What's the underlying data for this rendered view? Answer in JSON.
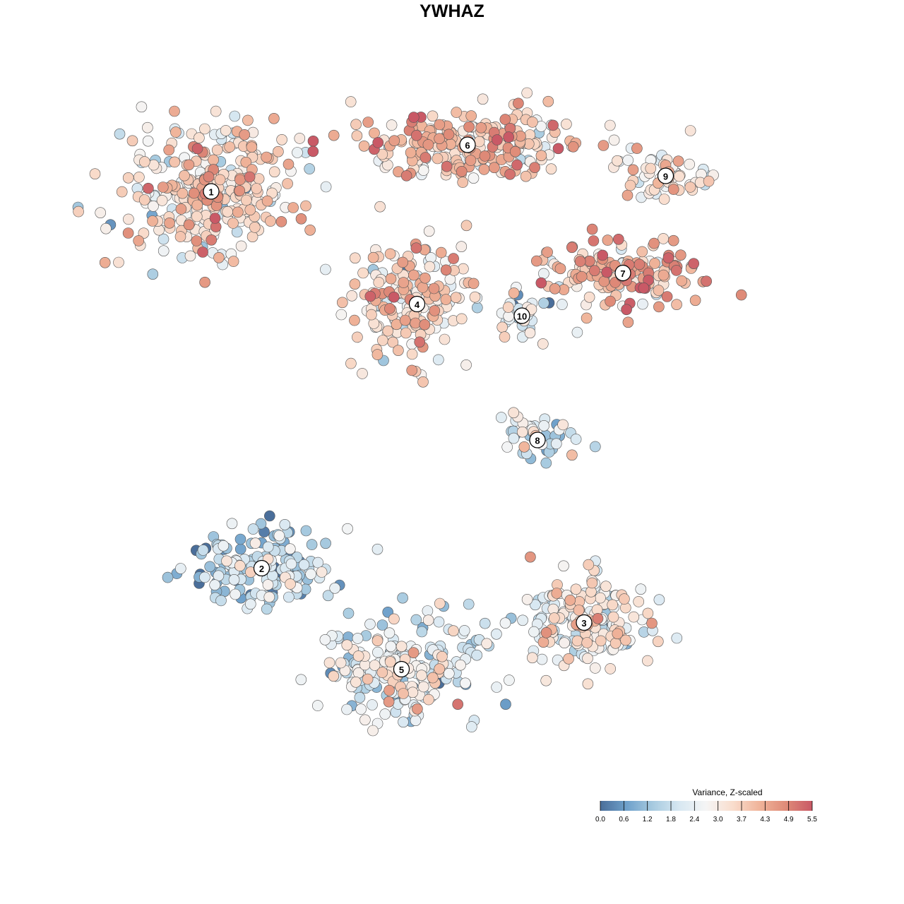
{
  "chart_data": {
    "type": "scatter",
    "title": "YWHAZ",
    "xlabel": "",
    "ylabel": "",
    "grid": false,
    "axes_visible": false,
    "point_style": "filled circles with dark outline, colored by value",
    "colorbar": {
      "title": "Variance, Z-scaled",
      "ticks": [
        "0.0",
        "0.6",
        "1.2",
        "1.8",
        "2.4",
        "3.0",
        "3.7",
        "4.3",
        "4.9",
        "5.5"
      ],
      "range": [
        0.0,
        5.5
      ],
      "colors": [
        "#4a6e9a",
        "#6fa1cb",
        "#a8cbe0",
        "#d8e8f2",
        "#f5f5f5",
        "#f9ddcd",
        "#f0b49a",
        "#df8b78",
        "#c95966"
      ],
      "placement": "bottom-right"
    },
    "clusters": [
      {
        "label": "1",
        "x": -62,
        "y": 64,
        "spread_x": 15,
        "spread_y": 11,
        "mean": 3.2
      },
      {
        "label": "2",
        "x": -49,
        "y": -33,
        "spread_x": 12,
        "spread_y": 7,
        "mean": 1.6
      },
      {
        "label": "3",
        "x": 34,
        "y": -47,
        "spread_x": 12,
        "spread_y": 8,
        "mean": 2.8
      },
      {
        "label": "4",
        "x": -9,
        "y": 35,
        "spread_x": 10,
        "spread_y": 10,
        "mean": 3.4
      },
      {
        "label": "5",
        "x": -13,
        "y": -59,
        "spread_x": 13,
        "spread_y": 9,
        "mean": 2.3
      },
      {
        "label": "6",
        "x": 4,
        "y": 76,
        "spread_x": 20,
        "spread_y": 6,
        "mean": 3.8
      },
      {
        "label": "7",
        "x": 44,
        "y": 43,
        "spread_x": 14,
        "spread_y": 6,
        "mean": 4.0
      },
      {
        "label": "8",
        "x": 22,
        "y": 0,
        "spread_x": 6,
        "spread_y": 4,
        "mean": 2.0
      },
      {
        "label": "9",
        "x": 55,
        "y": 68,
        "spread_x": 8,
        "spread_y": 4,
        "mean": 2.8
      },
      {
        "label": "10",
        "x": 18,
        "y": 32,
        "spread_x": 4,
        "spread_y": 4,
        "mean": 2.3
      }
    ]
  }
}
